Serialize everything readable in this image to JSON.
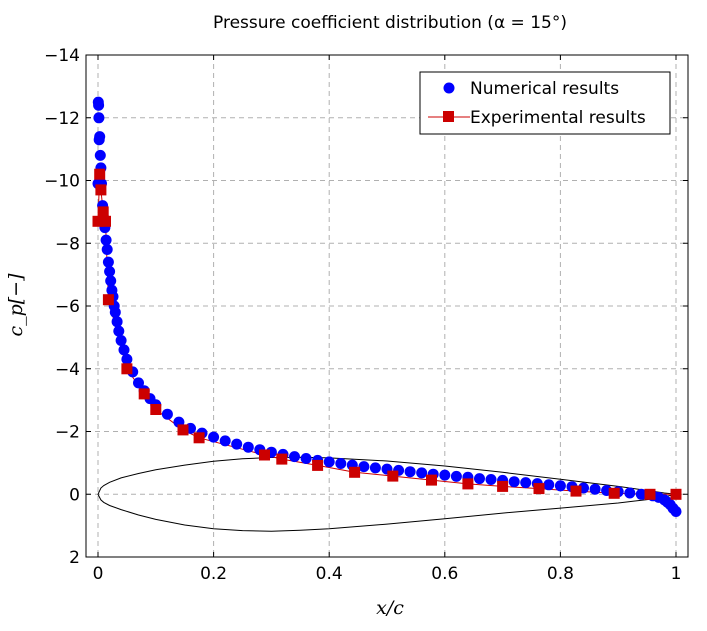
{
  "chart_data": {
    "type": "scatter",
    "title": "Pressure coefficient distribution (α = 15°)",
    "xlabel": "x/c",
    "ylabel": "c_p[−]",
    "xlim": [
      0,
      1
    ],
    "ylim": [
      -14,
      2
    ],
    "y_reversed": true,
    "grid": true,
    "legend_position": "top-right",
    "x_ticks": [
      0,
      0.2,
      0.4,
      0.6,
      0.8,
      1
    ],
    "x_tick_labels": [
      "0",
      "0.2",
      "0.4",
      "0.6",
      "0.8",
      "1"
    ],
    "y_ticks": [
      -14,
      -12,
      -10,
      -8,
      -6,
      -4,
      -2,
      0,
      2
    ],
    "y_tick_labels": [
      "−14",
      "−12",
      "−10",
      "−8",
      "−6",
      "−4",
      "−2",
      "0",
      "2"
    ],
    "series": [
      {
        "name": "Numerical results",
        "marker": "circle",
        "line": false,
        "color": "#0000ff",
        "x": [
          0.0,
          0.0005,
          0.001,
          0.0015,
          0.002,
          0.003,
          0.004,
          0.005,
          0.006,
          0.008,
          0.01,
          0.012,
          0.014,
          0.016,
          0.018,
          0.02,
          0.022,
          0.024,
          0.026,
          0.028,
          0.03,
          0.033,
          0.036,
          0.04,
          0.045,
          0.05,
          0.06,
          0.07,
          0.08,
          0.09,
          0.1,
          0.12,
          0.14,
          0.16,
          0.18,
          0.2,
          0.22,
          0.24,
          0.26,
          0.28,
          0.3,
          0.32,
          0.34,
          0.36,
          0.38,
          0.4,
          0.42,
          0.44,
          0.46,
          0.48,
          0.5,
          0.52,
          0.54,
          0.56,
          0.58,
          0.6,
          0.62,
          0.64,
          0.66,
          0.68,
          0.7,
          0.72,
          0.74,
          0.76,
          0.78,
          0.8,
          0.82,
          0.84,
          0.86,
          0.88,
          0.9,
          0.92,
          0.94,
          0.96,
          0.97,
          0.98,
          0.985,
          0.99,
          0.995,
          1.0
        ],
        "y": [
          -9.9,
          -12.5,
          -12.4,
          -12.0,
          -11.3,
          -11.4,
          -10.8,
          -10.4,
          -9.9,
          -9.2,
          -8.8,
          -8.5,
          -8.1,
          -7.8,
          -7.4,
          -7.1,
          -6.8,
          -6.5,
          -6.3,
          -6.0,
          -5.8,
          -5.5,
          -5.2,
          -4.9,
          -4.6,
          -4.3,
          -3.9,
          -3.55,
          -3.3,
          -3.05,
          -2.85,
          -2.55,
          -2.3,
          -2.1,
          -1.95,
          -1.82,
          -1.7,
          -1.6,
          -1.5,
          -1.42,
          -1.34,
          -1.27,
          -1.2,
          -1.14,
          -1.08,
          -1.03,
          -0.98,
          -0.93,
          -0.88,
          -0.84,
          -0.8,
          -0.76,
          -0.72,
          -0.68,
          -0.64,
          -0.61,
          -0.57,
          -0.54,
          -0.5,
          -0.47,
          -0.44,
          -0.4,
          -0.37,
          -0.34,
          -0.3,
          -0.27,
          -0.24,
          -0.2,
          -0.16,
          -0.12,
          -0.08,
          -0.04,
          0.0,
          0.05,
          0.1,
          0.18,
          0.25,
          0.33,
          0.45,
          0.55
        ]
      },
      {
        "name": "Experimental results",
        "marker": "square",
        "line": true,
        "color": "#cc0000",
        "x": [
          0.0,
          0.003,
          0.005,
          0.009,
          0.013,
          0.018,
          0.05,
          0.08,
          0.1,
          0.147,
          0.175,
          0.288,
          0.318,
          0.38,
          0.444,
          0.51,
          0.577,
          0.64,
          0.7,
          0.763,
          0.827,
          0.893,
          0.955,
          1.0
        ],
        "y": [
          -8.7,
          -10.2,
          -9.7,
          -9.0,
          -8.7,
          -6.2,
          -4.0,
          -3.2,
          -2.7,
          -2.05,
          -1.8,
          -1.25,
          -1.12,
          -0.92,
          -0.7,
          -0.58,
          -0.45,
          -0.33,
          -0.25,
          -0.18,
          -0.1,
          -0.03,
          0.0,
          0.0
        ]
      }
    ],
    "airfoil": {
      "label": "airfoil outline",
      "note": "airfoil section outline in x/c, drawn on the c_p axis",
      "upper_x": [
        0.0,
        0.005,
        0.01,
        0.02,
        0.04,
        0.07,
        0.1,
        0.15,
        0.2,
        0.25,
        0.3,
        0.35,
        0.4,
        0.5,
        0.6,
        0.7,
        0.8,
        0.9,
        0.95,
        0.98,
        1.0
      ],
      "upper_y": [
        0.0,
        -0.2,
        -0.28,
        -0.38,
        -0.52,
        -0.66,
        -0.78,
        -0.93,
        -1.05,
        -1.13,
        -1.17,
        -1.18,
        -1.16,
        -1.06,
        -0.9,
        -0.7,
        -0.48,
        -0.25,
        -0.12,
        -0.04,
        0.0
      ],
      "lower_x": [
        0.0,
        0.005,
        0.01,
        0.02,
        0.04,
        0.07,
        0.1,
        0.15,
        0.2,
        0.25,
        0.3,
        0.35,
        0.4,
        0.5,
        0.6,
        0.7,
        0.8,
        0.9,
        0.95,
        0.98,
        1.0
      ],
      "lower_y": [
        0.0,
        0.18,
        0.26,
        0.36,
        0.49,
        0.66,
        0.8,
        0.98,
        1.1,
        1.16,
        1.18,
        1.15,
        1.1,
        0.95,
        0.78,
        0.6,
        0.44,
        0.28,
        0.17,
        0.08,
        0.0
      ]
    }
  }
}
